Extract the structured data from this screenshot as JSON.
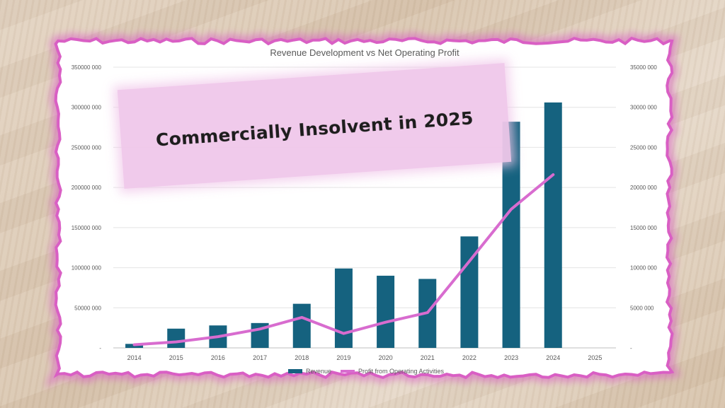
{
  "banner": {
    "text": "Commercially Insolvent in 2025"
  },
  "colors": {
    "revenue": "#15627f",
    "profit": "#d86ccf",
    "frame": "#d95fc4"
  },
  "chart_data": {
    "type": "bar",
    "title": "Revenue Development vs Net Operating Profit",
    "categories": [
      "2014",
      "2015",
      "2016",
      "2017",
      "2018",
      "2019",
      "2020",
      "2021",
      "2022",
      "2023",
      "2024",
      "2025"
    ],
    "series": [
      {
        "name": "Revenue",
        "type": "bar",
        "axis": "left",
        "values": [
          5000000,
          24000000,
          28000000,
          31000000,
          55000000,
          99000000,
          90000000,
          86000000,
          139000000,
          282000000,
          306000000,
          null
        ]
      },
      {
        "name": "Profit from Operating Activities",
        "type": "line",
        "axis": "right",
        "values": [
          400000,
          750000,
          1400000,
          2350000,
          3800000,
          1800000,
          3200000,
          4400000,
          10800000,
          17300000,
          21600000,
          null
        ]
      }
    ],
    "y_left": {
      "min": 0,
      "max": 350000000,
      "tick_labels": [
        "350000 000",
        "300000 000",
        "250000 000",
        "200000 000",
        "150000 000",
        "100000 000",
        "50000 000",
        "-"
      ]
    },
    "y_right": {
      "min": 0,
      "max": 35000000,
      "tick_labels": [
        "35000 000",
        "30000 000",
        "25000 000",
        "20000 000",
        "15000 000",
        "10000 000",
        "5000 000",
        "-"
      ]
    },
    "grid": true,
    "legend_position": "bottom"
  }
}
